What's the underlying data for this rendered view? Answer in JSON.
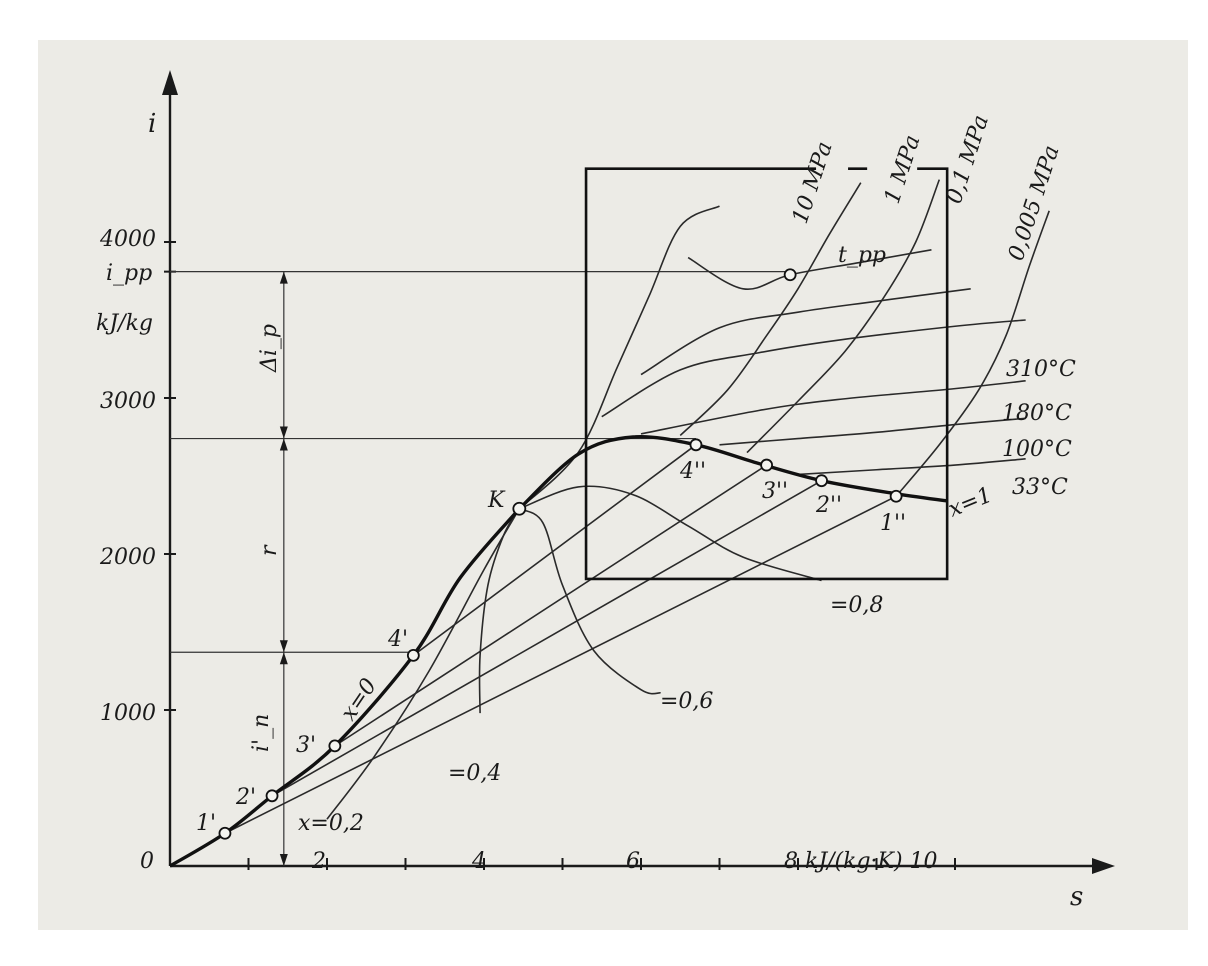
{
  "chart_data": {
    "type": "line",
    "title": "",
    "xlabel": "s",
    "ylabel": "i",
    "x_unit": "kJ/(kg·K)",
    "y_unit": "kJ/kg",
    "xlim": [
      0,
      11.8
    ],
    "ylim": [
      0,
      4600
    ],
    "x_ticks": [
      0,
      2,
      4,
      6,
      8,
      10
    ],
    "x_tick_labels": [
      "0",
      "2",
      "4",
      "6",
      "8 kJ/(kg·K) 10",
      "10"
    ],
    "x_minor_ticks": [
      1,
      3,
      5,
      7,
      9
    ],
    "y_ticks": [
      1000,
      2000,
      3000,
      4000
    ],
    "y_tick_labels": [
      "1000",
      "2000",
      "3000",
      "4000"
    ],
    "origin_label": "0",
    "grid": false,
    "critical_point": {
      "label": "K",
      "s": 4.45,
      "i": 2290
    },
    "saturation_liquid_curve": {
      "name": "x=0",
      "points": [
        [
          0,
          0
        ],
        [
          0.7,
          210
        ],
        [
          1.3,
          450
        ],
        [
          2.1,
          770
        ],
        [
          3.1,
          1350
        ],
        [
          3.7,
          1850
        ],
        [
          4.45,
          2290
        ]
      ]
    },
    "saturation_vapor_curve": {
      "name": "x=1",
      "points": [
        [
          4.45,
          2290
        ],
        [
          5.2,
          2640
        ],
        [
          5.9,
          2750
        ],
        [
          6.7,
          2700
        ],
        [
          7.5,
          2580
        ],
        [
          8.3,
          2470
        ],
        [
          9.2,
          2390
        ],
        [
          9.9,
          2340
        ]
      ]
    },
    "quality_curves": [
      {
        "name": "x=0,2",
        "points": [
          [
            2.0,
            300
          ],
          [
            2.6,
            700
          ],
          [
            3.3,
            1250
          ],
          [
            4.0,
            1900
          ],
          [
            4.45,
            2290
          ]
        ]
      },
      {
        "name": "=0,4",
        "points": [
          [
            3.95,
            980
          ],
          [
            3.95,
            1350
          ],
          [
            4.05,
            1800
          ],
          [
            4.25,
            2120
          ],
          [
            4.45,
            2290
          ]
        ]
      },
      {
        "name": "=0,6",
        "points": [
          [
            4.45,
            2290
          ],
          [
            4.75,
            2200
          ],
          [
            5.0,
            1800
          ],
          [
            5.4,
            1380
          ],
          [
            6.0,
            1130
          ],
          [
            6.25,
            1110
          ]
        ]
      },
      {
        "name": "=0,8",
        "points": [
          [
            4.45,
            2290
          ],
          [
            5.2,
            2430
          ],
          [
            5.9,
            2380
          ],
          [
            6.6,
            2180
          ],
          [
            7.3,
            1980
          ],
          [
            8.3,
            1830
          ]
        ]
      }
    ],
    "isobars": [
      {
        "name": "10 MPa",
        "points": [
          [
            4.45,
            2290
          ],
          [
            5.2,
            2650
          ],
          [
            5.7,
            3200
          ],
          [
            6.1,
            3650
          ],
          [
            6.5,
            4100
          ],
          [
            7.0,
            4230
          ]
        ]
      },
      {
        "name": "1 MPa",
        "points": [
          [
            6.5,
            2760
          ],
          [
            7.1,
            3050
          ],
          [
            7.6,
            3400
          ],
          [
            8.0,
            3700
          ],
          [
            8.4,
            4050
          ],
          [
            8.8,
            4380
          ]
        ]
      },
      {
        "name": "0,1 MPa",
        "points": [
          [
            7.35,
            2650
          ],
          [
            8.0,
            2980
          ],
          [
            8.6,
            3300
          ],
          [
            9.1,
            3650
          ],
          [
            9.5,
            4000
          ],
          [
            9.8,
            4400
          ]
        ]
      },
      {
        "name": "0,005 MPa",
        "points": [
          [
            9.25,
            2370
          ],
          [
            9.8,
            2700
          ],
          [
            10.3,
            3050
          ],
          [
            10.65,
            3400
          ],
          [
            10.95,
            3850
          ],
          [
            11.2,
            4200
          ]
        ]
      }
    ],
    "isotherms": [
      {
        "name": "t_pp",
        "points": [
          [
            6.6,
            3900
          ],
          [
            7.3,
            3700
          ],
          [
            7.9,
            3790
          ],
          [
            8.8,
            3870
          ],
          [
            9.7,
            3950
          ]
        ]
      },
      {
        "name": "",
        "points": [
          [
            6.0,
            3150
          ],
          [
            7.0,
            3450
          ],
          [
            8.0,
            3550
          ],
          [
            9.0,
            3620
          ],
          [
            10.2,
            3700
          ]
        ]
      },
      {
        "name": "310°C",
        "points": [
          [
            5.5,
            2880
          ],
          [
            6.5,
            3180
          ],
          [
            7.5,
            3290
          ],
          [
            8.5,
            3370
          ],
          [
            10.0,
            3460
          ],
          [
            10.9,
            3500
          ]
        ]
      },
      {
        "name": "180°C",
        "points": [
          [
            6.0,
            2770
          ],
          [
            7.5,
            2920
          ],
          [
            8.5,
            2990
          ],
          [
            10.0,
            3060
          ],
          [
            10.9,
            3110
          ]
        ]
      },
      {
        "name": "100°C",
        "points": [
          [
            7.0,
            2700
          ],
          [
            8.0,
            2740
          ],
          [
            9.0,
            2780
          ],
          [
            10.0,
            2830
          ],
          [
            10.9,
            2870
          ]
        ]
      },
      {
        "name": "33°C",
        "points": [
          [
            8.0,
            2510
          ],
          [
            9.0,
            2540
          ],
          [
            10.0,
            2570
          ],
          [
            10.9,
            2610
          ]
        ]
      }
    ],
    "wet_isobars": [
      {
        "points": [
          [
            0.7,
            210
          ],
          [
            9.25,
            2370
          ]
        ]
      },
      {
        "points": [
          [
            1.3,
            450
          ],
          [
            8.3,
            2470
          ]
        ]
      },
      {
        "points": [
          [
            2.1,
            770
          ],
          [
            7.6,
            2570
          ]
        ]
      },
      {
        "points": [
          [
            3.1,
            1350
          ],
          [
            6.7,
            2700
          ]
        ]
      }
    ],
    "state_points": [
      {
        "label": "1'",
        "s": 0.7,
        "i": 210
      },
      {
        "label": "2'",
        "s": 1.3,
        "i": 450
      },
      {
        "label": "3'",
        "s": 2.1,
        "i": 770
      },
      {
        "label": "4'",
        "s": 3.1,
        "i": 1350
      },
      {
        "label": "4''",
        "s": 6.7,
        "i": 2700
      },
      {
        "label": "3''",
        "s": 7.6,
        "i": 2570
      },
      {
        "label": "2''",
        "s": 8.3,
        "i": 2470
      },
      {
        "label": "1''",
        "s": 9.25,
        "i": 2370
      },
      {
        "label": "",
        "s": 7.9,
        "i": 3790
      }
    ],
    "reference_levels": {
      "i_pp": 3810,
      "i_sat_vapor": 2740,
      "i_sat_liquid": 1370
    },
    "interval_labels": [
      "Δi_p",
      "r",
      "i'_n"
    ],
    "inset_box": {
      "s_range": [
        5.3,
        9.9
      ],
      "i_range": [
        1840,
        4470
      ]
    },
    "annotations": [
      "i_pp",
      "kJ/kg",
      "Δi_p",
      "r",
      "i'_n",
      "K",
      "x=0",
      "x=0,2",
      "=0,4",
      "=0,6",
      "=0,8",
      "x=1",
      "10 MPa",
      "1 MPa",
      "0,1 MPa",
      "0,005 MPa",
      "t_pp",
      "310°C",
      "180°C",
      "100°C",
      "33°C"
    ]
  }
}
